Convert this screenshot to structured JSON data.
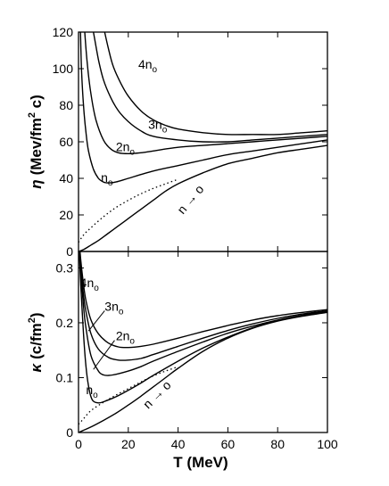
{
  "chart_data": [
    {
      "type": "line",
      "ylabel": "η (Mev/fm² c)",
      "ylabel_parts": {
        "sym": "η",
        "pre": "(Mev/fm",
        "sup": "2",
        "post": " c)"
      },
      "xlim": [
        0,
        100
      ],
      "ylim": [
        0,
        120
      ],
      "yticks": [
        0,
        20,
        40,
        60,
        80,
        100,
        120
      ],
      "grid": false,
      "series": [
        {
          "name": "4n0",
          "style": "solid",
          "x": [
            10.5,
            12,
            14,
            17,
            20,
            25,
            30,
            35,
            40,
            50,
            60,
            70,
            80,
            90,
            100
          ],
          "y": [
            120,
            111,
            101,
            92,
            85,
            77,
            72,
            69,
            67,
            65,
            64,
            64,
            64,
            65,
            66
          ]
        },
        {
          "name": "3n0",
          "style": "solid",
          "x": [
            6,
            8,
            10,
            13,
            16,
            20,
            25,
            30,
            40,
            50,
            60,
            70,
            80,
            90,
            100
          ],
          "y": [
            120,
            105,
            94,
            84,
            77,
            71,
            66,
            63,
            61,
            60,
            60,
            61,
            62,
            63,
            64
          ]
        },
        {
          "name": "2n0",
          "style": "solid",
          "x": [
            2.5,
            3.5,
            5,
            7,
            10,
            13,
            16,
            20,
            25,
            30,
            40,
            50,
            60,
            70,
            80,
            90,
            100
          ],
          "y": [
            120,
            103,
            86,
            72,
            61,
            56,
            54,
            53.5,
            54,
            55,
            57,
            58,
            59,
            60,
            61,
            62,
            63
          ]
        },
        {
          "name": "n0",
          "style": "solid",
          "x": [
            0.8,
            1.2,
            2,
            3,
            4,
            6,
            8,
            10,
            12,
            15,
            20,
            30,
            40,
            50,
            60,
            70,
            80,
            90,
            100
          ],
          "y": [
            120,
            100,
            80,
            65,
            55,
            45,
            40,
            38,
            37.5,
            38,
            40,
            44,
            47,
            50,
            53,
            55,
            57,
            59,
            61
          ]
        },
        {
          "name": "n→0",
          "style": "solid",
          "x": [
            0,
            2,
            5,
            8,
            12,
            16,
            20,
            25,
            30,
            35,
            40,
            50,
            60,
            70,
            80,
            90,
            100
          ],
          "y": [
            0,
            1,
            3.5,
            6,
            10,
            14,
            18,
            23,
            28,
            33,
            37,
            43,
            48,
            51,
            54,
            56,
            58
          ]
        },
        {
          "name": "",
          "style": "dotted",
          "x": [
            0,
            2,
            5,
            10,
            15,
            20,
            25,
            30,
            35,
            40
          ],
          "y": [
            5,
            9,
            13,
            19,
            24,
            28,
            31.5,
            34.5,
            37,
            39.5
          ]
        }
      ],
      "labels": [
        {
          "text": "4n",
          "sub": "o",
          "x": 24,
          "y": 100
        },
        {
          "text": "3n",
          "sub": "o",
          "x": 28,
          "y": 67
        },
        {
          "text": "2n",
          "sub": "o",
          "x": 15,
          "y": 55
        },
        {
          "text": "n",
          "sub": "o",
          "x": 9,
          "y": 38
        },
        {
          "text": "n → o",
          "sub": "",
          "x": 42,
          "y": 20,
          "rotate": -50
        }
      ]
    },
    {
      "type": "line",
      "xlabel": "T (MeV)",
      "ylabel": "κ (c/fm²)",
      "ylabel_parts": {
        "sym": "κ",
        "pre": "(c/fm",
        "sup": "2",
        "post": ")"
      },
      "xlim": [
        0,
        100
      ],
      "ylim": [
        0,
        0.33
      ],
      "xticks": [
        0,
        20,
        40,
        60,
        80,
        100
      ],
      "yticks": [
        0,
        0.1,
        0.2,
        0.3
      ],
      "ytick_labels": [
        "0",
        "0.1",
        "0.2",
        "0.3"
      ],
      "grid": false,
      "series": [
        {
          "name": "4n0",
          "style": "solid",
          "x": [
            0.6,
            1,
            2,
            3,
            5,
            8,
            12,
            16,
            20,
            25,
            30,
            40,
            50,
            60,
            70,
            80,
            90,
            100
          ],
          "y": [
            0.33,
            0.31,
            0.27,
            0.24,
            0.205,
            0.18,
            0.163,
            0.156,
            0.155,
            0.157,
            0.161,
            0.172,
            0.184,
            0.195,
            0.205,
            0.213,
            0.219,
            0.224
          ]
        },
        {
          "name": "3n0",
          "style": "solid",
          "x": [
            0.5,
            1,
            2,
            3,
            5,
            8,
            12,
            16,
            20,
            25,
            30,
            40,
            50,
            60,
            70,
            80,
            90,
            100
          ],
          "y": [
            0.33,
            0.3,
            0.25,
            0.22,
            0.18,
            0.152,
            0.137,
            0.132,
            0.132,
            0.135,
            0.142,
            0.157,
            0.172,
            0.186,
            0.198,
            0.208,
            0.216,
            0.222
          ]
        },
        {
          "name": "2n0",
          "style": "solid",
          "x": [
            0.4,
            1,
            2,
            3,
            5,
            8,
            10,
            12,
            15,
            20,
            25,
            30,
            40,
            50,
            60,
            70,
            80,
            90,
            100
          ],
          "y": [
            0.33,
            0.29,
            0.23,
            0.19,
            0.14,
            0.112,
            0.105,
            0.104,
            0.106,
            0.112,
            0.12,
            0.13,
            0.148,
            0.165,
            0.181,
            0.194,
            0.205,
            0.214,
            0.221
          ]
        },
        {
          "name": "n0",
          "style": "solid",
          "x": [
            0.3,
            1,
            2,
            3,
            4,
            5,
            6,
            8,
            10,
            15,
            20,
            25,
            30,
            40,
            50,
            60,
            70,
            80,
            90,
            100
          ],
          "y": [
            0.33,
            0.26,
            0.18,
            0.12,
            0.085,
            0.065,
            0.057,
            0.054,
            0.056,
            0.065,
            0.077,
            0.09,
            0.104,
            0.13,
            0.154,
            0.174,
            0.191,
            0.204,
            0.213,
            0.22
          ]
        },
        {
          "name": "n→0",
          "style": "solid",
          "x": [
            0,
            2,
            5,
            10,
            15,
            20,
            25,
            30,
            35,
            40,
            50,
            60,
            70,
            80,
            90,
            100
          ],
          "y": [
            0,
            0.004,
            0.01,
            0.022,
            0.035,
            0.05,
            0.066,
            0.083,
            0.1,
            0.117,
            0.148,
            0.172,
            0.19,
            0.203,
            0.212,
            0.219
          ]
        },
        {
          "name": "",
          "style": "dotted",
          "x": [
            0,
            2,
            5,
            10,
            15,
            20,
            25,
            30,
            35,
            40
          ],
          "y": [
            0.015,
            0.025,
            0.04,
            0.055,
            0.068,
            0.08,
            0.092,
            0.103,
            0.112,
            0.12
          ]
        }
      ],
      "labels": [
        {
          "text": "4n",
          "sub": "o",
          "x": 0.6,
          "y": 0.265
        },
        {
          "text": "3n",
          "sub": "o",
          "x": 10.5,
          "y": 0.222
        },
        {
          "text": "2n",
          "sub": "o",
          "x": 15,
          "y": 0.168
        },
        {
          "text": "n",
          "sub": "o",
          "x": 3,
          "y": 0.07
        },
        {
          "text": "n → o",
          "sub": "",
          "x": 28,
          "y": 0.042,
          "rotate": -45
        }
      ],
      "annotations": [
        {
          "from": [
            10.5,
            0.222
          ],
          "to": [
            4,
            0.185
          ]
        },
        {
          "from": [
            14.5,
            0.168
          ],
          "to": [
            6,
            0.115
          ]
        }
      ]
    }
  ]
}
